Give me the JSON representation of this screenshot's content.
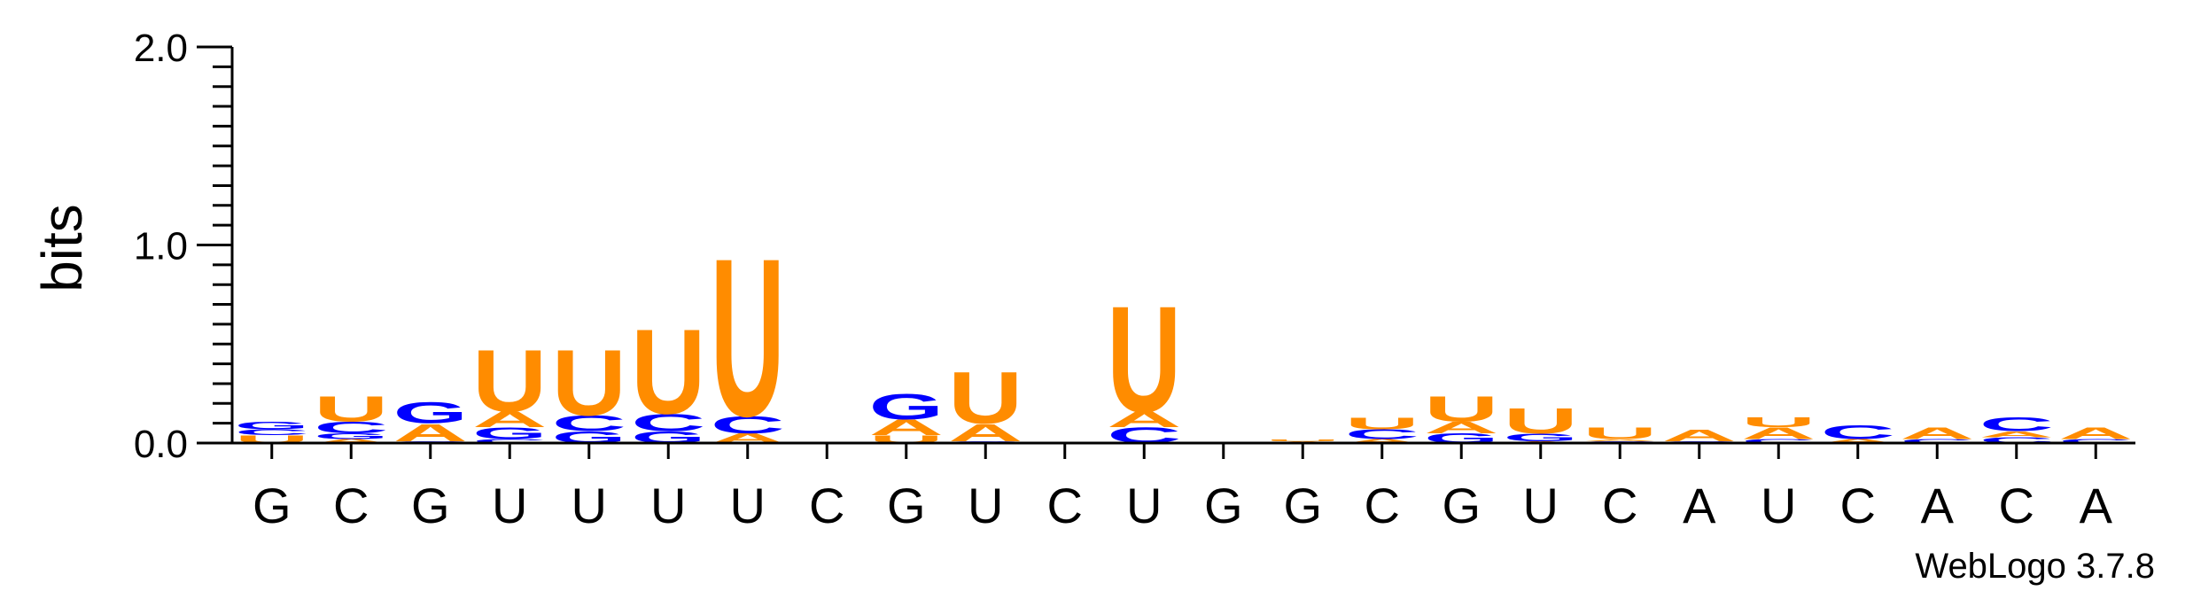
{
  "chart_data": {
    "type": "sequence-logo",
    "ylabel": "bits",
    "ylim": [
      0,
      2.0
    ],
    "yticks": [
      "0.0",
      "1.0",
      "2.0"
    ],
    "colors": {
      "A": "#ff8c00",
      "U": "#ff8c00",
      "C": "#0000ff",
      "G": "#0000ff"
    },
    "positions": [
      {
        "label": "G",
        "stack": [
          [
            "U",
            0.04
          ],
          [
            "C",
            0.03
          ],
          [
            "G",
            0.04
          ]
        ]
      },
      {
        "label": "C",
        "stack": [
          [
            "A",
            0.02
          ],
          [
            "G",
            0.03
          ],
          [
            "C",
            0.06
          ],
          [
            "U",
            0.13
          ]
        ]
      },
      {
        "label": "G",
        "stack": [
          [
            "C",
            0.01
          ],
          [
            "A",
            0.09
          ],
          [
            "G",
            0.11
          ]
        ]
      },
      {
        "label": "U",
        "stack": [
          [
            "C",
            0.02
          ],
          [
            "G",
            0.06
          ],
          [
            "A",
            0.08
          ],
          [
            "U",
            0.32
          ]
        ]
      },
      {
        "label": "U",
        "stack": [
          [
            "G",
            0.06
          ],
          [
            "C",
            0.08
          ],
          [
            "U",
            0.34
          ]
        ]
      },
      {
        "label": "U",
        "stack": [
          [
            "G",
            0.06
          ],
          [
            "C",
            0.09
          ],
          [
            "U",
            0.44
          ]
        ]
      },
      {
        "label": "U",
        "stack": [
          [
            "A",
            0.05
          ],
          [
            "C",
            0.09
          ],
          [
            "U",
            0.82
          ]
        ]
      },
      {
        "label": "C",
        "stack": []
      },
      {
        "label": "G",
        "stack": [
          [
            "U",
            0.04
          ],
          [
            "A",
            0.08
          ],
          [
            "G",
            0.13
          ]
        ]
      },
      {
        "label": "U",
        "stack": [
          [
            "G",
            0.01
          ],
          [
            "A",
            0.09
          ],
          [
            "U",
            0.27
          ]
        ]
      },
      {
        "label": "C",
        "stack": []
      },
      {
        "label": "U",
        "stack": [
          [
            "C",
            0.08
          ],
          [
            "A",
            0.08
          ],
          [
            "U",
            0.55
          ]
        ]
      },
      {
        "label": "G",
        "stack": []
      },
      {
        "label": "G",
        "stack": [
          [
            "A",
            0.01
          ],
          [
            "U",
            0.01
          ]
        ]
      },
      {
        "label": "C",
        "stack": [
          [
            "A",
            0.02
          ],
          [
            "C",
            0.05
          ],
          [
            "U",
            0.06
          ]
        ]
      },
      {
        "label": "G",
        "stack": [
          [
            "G",
            0.05
          ],
          [
            "A",
            0.06
          ],
          [
            "U",
            0.13
          ]
        ]
      },
      {
        "label": "U",
        "stack": [
          [
            "A",
            0.01
          ],
          [
            "G",
            0.04
          ],
          [
            "U",
            0.13
          ]
        ]
      },
      {
        "label": "C",
        "stack": [
          [
            "C",
            0.01
          ],
          [
            "A",
            0.01
          ],
          [
            "U",
            0.06
          ]
        ]
      },
      {
        "label": "A",
        "stack": [
          [
            "C",
            0.01
          ],
          [
            "A",
            0.06
          ]
        ]
      },
      {
        "label": "U",
        "stack": [
          [
            "C",
            0.02
          ],
          [
            "A",
            0.06
          ],
          [
            "U",
            0.05
          ]
        ]
      },
      {
        "label": "C",
        "stack": [
          [
            "A",
            0.02
          ],
          [
            "C",
            0.07
          ]
        ]
      },
      {
        "label": "A",
        "stack": [
          [
            "C",
            0.02
          ],
          [
            "A",
            0.06
          ]
        ]
      },
      {
        "label": "C",
        "stack": [
          [
            "C",
            0.03
          ],
          [
            "A",
            0.03
          ],
          [
            "C",
            0.07
          ]
        ]
      },
      {
        "label": "A",
        "stack": [
          [
            "C",
            0.02
          ],
          [
            "A",
            0.06
          ]
        ]
      }
    ]
  },
  "footer": "WebLogo 3.7.8"
}
